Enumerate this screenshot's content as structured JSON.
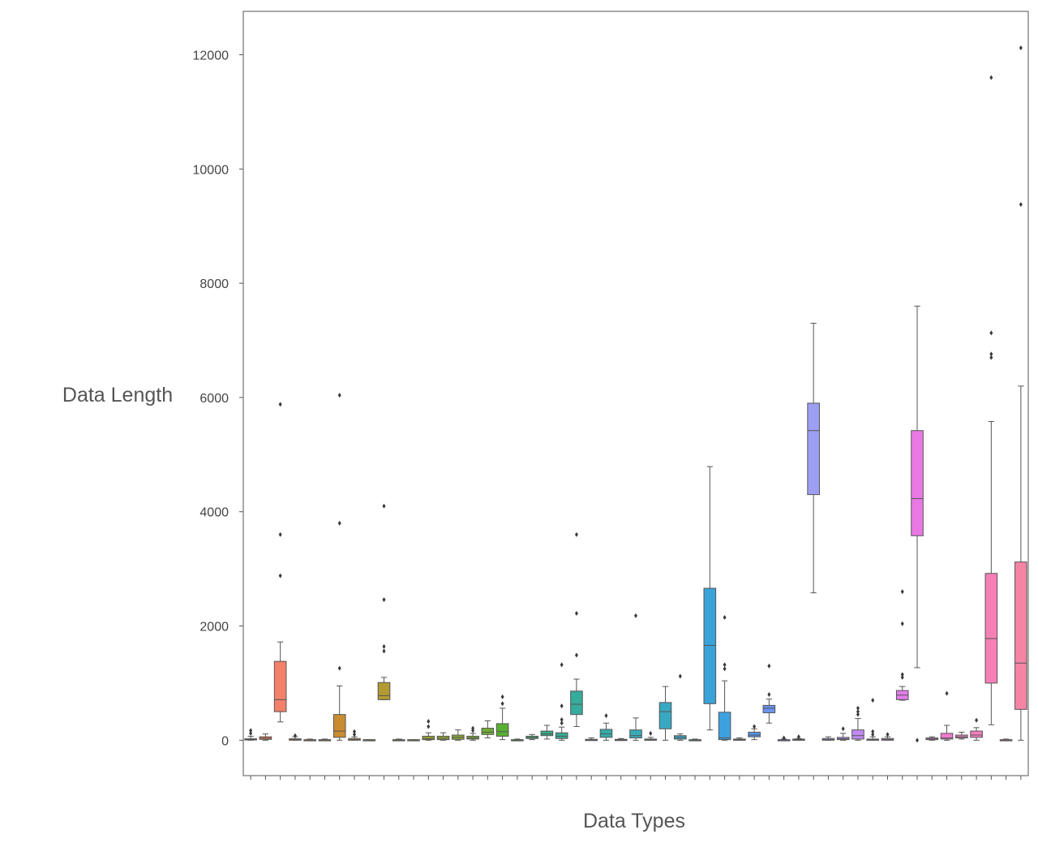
{
  "chart_data": {
    "type": "box",
    "title": "",
    "xlabel": "Data Types",
    "ylabel": "Data Length",
    "ylim": [
      -620,
      12760
    ],
    "yticks": [
      0,
      2000,
      4000,
      6000,
      8000,
      10000,
      12000
    ],
    "x_tick_labels_shown": false,
    "grid": false,
    "legend": "none",
    "box_count": 53,
    "boxes": [
      {
        "color": "#f77189",
        "q1": 5,
        "median": 15,
        "q3": 25,
        "whisker_low": 0,
        "whisker_high": 70,
        "outliers": [
          120,
          170
        ]
      },
      {
        "color": "#f7754f",
        "q1": 15,
        "median": 35,
        "q3": 60,
        "whisker_low": 0,
        "whisker_high": 110,
        "outliers": []
      },
      {
        "color": "#f5806a",
        "q1": 500,
        "median": 710,
        "q3": 1380,
        "whisker_low": 320,
        "whisker_high": 1720,
        "outliers": [
          2880,
          3600,
          5880
        ]
      },
      {
        "color": "#e88231",
        "q1": 0,
        "median": 10,
        "q3": 25,
        "whisker_low": 0,
        "whisker_high": 60,
        "outliers": [
          80
        ]
      },
      {
        "color": "#d98b33",
        "q1": 0,
        "median": 5,
        "q3": 10,
        "whisker_low": 0,
        "whisker_high": 20,
        "outliers": []
      },
      {
        "color": "#ce8f31",
        "q1": 0,
        "median": 5,
        "q3": 10,
        "whisker_low": 0,
        "whisker_high": 20,
        "outliers": []
      },
      {
        "color": "#c98c30",
        "q1": 50,
        "median": 160,
        "q3": 450,
        "whisker_low": 0,
        "whisker_high": 950,
        "outliers": [
          1260,
          3800,
          6040
        ]
      },
      {
        "color": "#c39531",
        "q1": 0,
        "median": 10,
        "q3": 30,
        "whisker_low": 0,
        "whisker_high": 60,
        "outliers": [
          100,
          150
        ]
      },
      {
        "color": "#bb9832",
        "q1": 0,
        "median": 5,
        "q3": 10,
        "whisker_low": 0,
        "whisker_high": 10,
        "outliers": []
      },
      {
        "color": "#b39a31",
        "q1": 710,
        "median": 780,
        "q3": 1010,
        "whisker_low": 710,
        "whisker_high": 1100,
        "outliers": [
          1560,
          1640,
          2460,
          4100
        ]
      },
      {
        "color": "#ab9c31",
        "q1": 0,
        "median": 5,
        "q3": 10,
        "whisker_low": 0,
        "whisker_high": 20,
        "outliers": []
      },
      {
        "color": "#a49f31",
        "q1": 0,
        "median": 5,
        "q3": 10,
        "whisker_low": 0,
        "whisker_high": 10,
        "outliers": []
      },
      {
        "color": "#9ca331",
        "q1": 10,
        "median": 30,
        "q3": 70,
        "whisker_low": 0,
        "whisker_high": 130,
        "outliers": [
          240,
          330
        ]
      },
      {
        "color": "#93a531",
        "q1": 10,
        "median": 35,
        "q3": 70,
        "whisker_low": 0,
        "whisker_high": 130,
        "outliers": []
      },
      {
        "color": "#8aa832",
        "q1": 15,
        "median": 50,
        "q3": 90,
        "whisker_low": 0,
        "whisker_high": 180,
        "outliers": []
      },
      {
        "color": "#7fab31",
        "q1": 20,
        "median": 40,
        "q3": 70,
        "whisker_low": 0,
        "whisker_high": 120,
        "outliers": [
          170,
          210
        ]
      },
      {
        "color": "#6fae32",
        "q1": 100,
        "median": 140,
        "q3": 210,
        "whisker_low": 40,
        "whisker_high": 340,
        "outliers": []
      },
      {
        "color": "#58b033",
        "q1": 70,
        "median": 150,
        "q3": 290,
        "whisker_low": 10,
        "whisker_high": 560,
        "outliers": [
          640,
          760
        ]
      },
      {
        "color": "#34b137",
        "q1": 0,
        "median": 5,
        "q3": 10,
        "whisker_low": 0,
        "whisker_high": 20,
        "outliers": []
      },
      {
        "color": "#33b06f",
        "q1": 30,
        "median": 45,
        "q3": 70,
        "whisker_low": 10,
        "whisker_high": 100,
        "outliers": []
      },
      {
        "color": "#34ae88",
        "q1": 80,
        "median": 110,
        "q3": 160,
        "whisker_low": 20,
        "whisker_high": 260,
        "outliers": []
      },
      {
        "color": "#35ad94",
        "q1": 30,
        "median": 70,
        "q3": 130,
        "whisker_low": 0,
        "whisker_high": 230,
        "outliers": [
          300,
          360,
          600,
          1320
        ]
      },
      {
        "color": "#35ac9c",
        "q1": 450,
        "median": 630,
        "q3": 860,
        "whisker_low": 240,
        "whisker_high": 1070,
        "outliers": [
          1490,
          2220,
          3600
        ]
      },
      {
        "color": "#36aca3",
        "q1": 0,
        "median": 5,
        "q3": 15,
        "whisker_low": 0,
        "whisker_high": 40,
        "outliers": []
      },
      {
        "color": "#36abaa",
        "q1": 50,
        "median": 110,
        "q3": 190,
        "whisker_low": 0,
        "whisker_high": 300,
        "outliers": [
          430
        ]
      },
      {
        "color": "#37abb0",
        "q1": 0,
        "median": 5,
        "q3": 15,
        "whisker_low": 0,
        "whisker_high": 30,
        "outliers": []
      },
      {
        "color": "#37abb6",
        "q1": 40,
        "median": 80,
        "q3": 180,
        "whisker_low": 0,
        "whisker_high": 390,
        "outliers": [
          2180
        ]
      },
      {
        "color": "#37aabc",
        "q1": 0,
        "median": 10,
        "q3": 20,
        "whisker_low": 0,
        "whisker_high": 50,
        "outliers": [
          120
        ]
      },
      {
        "color": "#38a9c2",
        "q1": 200,
        "median": 500,
        "q3": 660,
        "whisker_low": 0,
        "whisker_high": 940,
        "outliers": []
      },
      {
        "color": "#39a8c9",
        "q1": 20,
        "median": 50,
        "q3": 80,
        "whisker_low": 0,
        "whisker_high": 110,
        "outliers": [
          1120
        ]
      },
      {
        "color": "#3aa6d0",
        "q1": 0,
        "median": 5,
        "q3": 10,
        "whisker_low": 0,
        "whisker_high": 20,
        "outliers": []
      },
      {
        "color": "#3ba3da",
        "q1": 640,
        "median": 1660,
        "q3": 2660,
        "whisker_low": 180,
        "whisker_high": 4790,
        "outliers": []
      },
      {
        "color": "#3da1e0",
        "q1": 10,
        "median": 40,
        "q3": 490,
        "whisker_low": 0,
        "whisker_high": 1040,
        "outliers": [
          1250,
          1320,
          2150
        ]
      },
      {
        "color": "#429ee9",
        "q1": 0,
        "median": 10,
        "q3": 20,
        "whisker_low": 0,
        "whisker_high": 40,
        "outliers": []
      },
      {
        "color": "#5496f0",
        "q1": 60,
        "median": 90,
        "q3": 140,
        "whisker_low": 10,
        "whisker_high": 200,
        "outliers": [
          240
        ]
      },
      {
        "color": "#6a93f2",
        "q1": 480,
        "median": 560,
        "q3": 610,
        "whisker_low": 300,
        "whisker_high": 720,
        "outliers": [
          800,
          1300
        ]
      },
      {
        "color": "#7d92f2",
        "q1": 0,
        "median": 5,
        "q3": 10,
        "whisker_low": 0,
        "whisker_high": 20,
        "outliers": [
          40
        ]
      },
      {
        "color": "#8d92f2",
        "q1": 0,
        "median": 10,
        "q3": 20,
        "whisker_low": 0,
        "whisker_high": 30,
        "outliers": [
          60
        ]
      },
      {
        "color": "#9c9ff2",
        "q1": 4300,
        "median": 5420,
        "q3": 5900,
        "whisker_low": 2580,
        "whisker_high": 7300,
        "outliers": []
      },
      {
        "color": "#a98ff2",
        "q1": 0,
        "median": 10,
        "q3": 30,
        "whisker_low": 0,
        "whisker_high": 60,
        "outliers": []
      },
      {
        "color": "#b48cf2",
        "q1": 10,
        "median": 25,
        "q3": 50,
        "whisker_low": 0,
        "whisker_high": 120,
        "outliers": [
          200
        ]
      },
      {
        "color": "#c08af2",
        "q1": 20,
        "median": 80,
        "q3": 180,
        "whisker_low": 0,
        "whisker_high": 380,
        "outliers": [
          450,
          500,
          560
        ]
      },
      {
        "color": "#cc86f1",
        "q1": 0,
        "median": 10,
        "q3": 20,
        "whisker_low": 0,
        "whisker_high": 60,
        "outliers": [
          100,
          150,
          700
        ]
      },
      {
        "color": "#d882ee",
        "q1": 0,
        "median": 15,
        "q3": 30,
        "whisker_low": 0,
        "whisker_high": 60,
        "outliers": [
          100
        ]
      },
      {
        "color": "#e17de9",
        "q1": 710,
        "median": 790,
        "q3": 870,
        "whisker_low": 700,
        "whisker_high": 940,
        "outliers": [
          1100,
          1150,
          2040,
          2600
        ]
      },
      {
        "color": "#ea78e4",
        "q1": 3580,
        "median": 4230,
        "q3": 5420,
        "whisker_low": 1270,
        "whisker_high": 7600,
        "outliers": [
          0
        ]
      },
      {
        "color": "#f277dc",
        "q1": 10,
        "median": 20,
        "q3": 40,
        "whisker_low": 0,
        "whisker_high": 60,
        "outliers": []
      },
      {
        "color": "#f47ad2",
        "q1": 20,
        "median": 40,
        "q3": 120,
        "whisker_low": 0,
        "whisker_high": 260,
        "outliers": [
          820
        ]
      },
      {
        "color": "#f57cc8",
        "q1": 40,
        "median": 60,
        "q3": 90,
        "whisker_low": 20,
        "whisker_high": 140,
        "outliers": []
      },
      {
        "color": "#f67ebf",
        "q1": 50,
        "median": 90,
        "q3": 160,
        "whisker_low": 0,
        "whisker_high": 220,
        "outliers": [
          350
        ]
      },
      {
        "color": "#f680b6",
        "q1": 1000,
        "median": 1780,
        "q3": 2920,
        "whisker_low": 270,
        "whisker_high": 5580,
        "outliers": [
          6700,
          6760,
          7130,
          11600
        ]
      },
      {
        "color": "#f682ad",
        "q1": 0,
        "median": 5,
        "q3": 10,
        "whisker_low": 0,
        "whisker_high": 20,
        "outliers": []
      },
      {
        "color": "#f584a5",
        "q1": 540,
        "median": 1350,
        "q3": 3120,
        "whisker_low": 0,
        "whisker_high": 6200,
        "outliers": [
          9380,
          12120
        ]
      }
    ]
  }
}
